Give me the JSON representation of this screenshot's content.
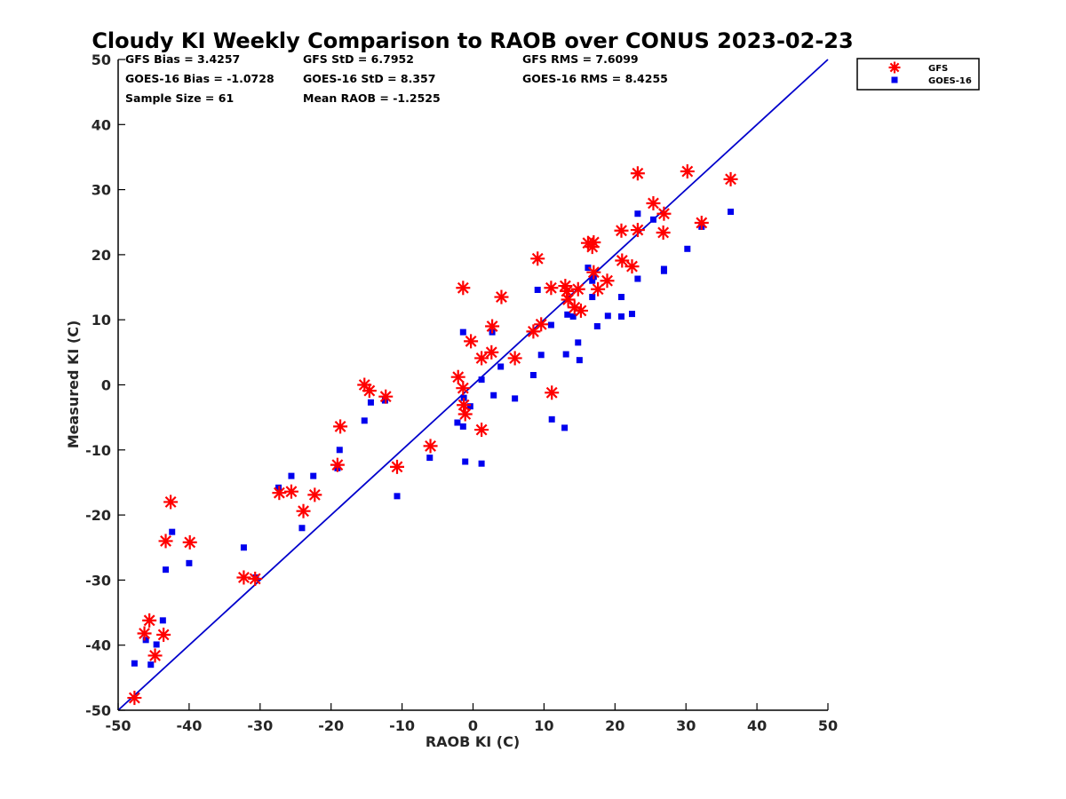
{
  "chart_data": {
    "type": "scatter",
    "title": "Cloudy KI Weekly Comparison to RAOB over CONUS 2023-02-23",
    "xlabel": "RAOB KI (C)",
    "ylabel": "Measured KI (C)",
    "xlim": [
      -50,
      50
    ],
    "ylim": [
      -50,
      50
    ],
    "xticks": [
      -50,
      -40,
      -30,
      -20,
      -10,
      0,
      10,
      20,
      30,
      40,
      50
    ],
    "yticks": [
      -50,
      -40,
      -30,
      -20,
      -10,
      0,
      10,
      20,
      30,
      40,
      50
    ],
    "grid": false,
    "legend_position": "outside-top-right",
    "reference_line": {
      "from": [
        -50,
        -50
      ],
      "to": [
        50,
        50
      ],
      "color": "#0000cc"
    },
    "stats": [
      "GFS Bias = 3.4257",
      "GFS StD = 6.7952",
      "GFS RMS = 7.6099",
      "GOES-16 Bias = -1.0728",
      "GOES-16 StD = 8.357",
      "GOES-16 RMS = 8.4255",
      "Sample Size = 61",
      "Mean RAOB = -1.2525"
    ],
    "series": [
      {
        "name": "GFS",
        "marker": "asterisk",
        "color": "#ff0000",
        "points": [
          [
            -47.7,
            -48.1
          ],
          [
            -46.3,
            -38.2
          ],
          [
            -45.6,
            -36.2
          ],
          [
            -44.8,
            -41.6
          ],
          [
            -43.6,
            -38.4
          ],
          [
            -43.3,
            -24.0
          ],
          [
            -42.6,
            -18.0
          ],
          [
            -39.9,
            -24.2
          ],
          [
            -32.3,
            -29.6
          ],
          [
            -30.7,
            -29.8
          ],
          [
            -27.3,
            -16.6
          ],
          [
            -25.6,
            -16.4
          ],
          [
            -23.9,
            -19.4
          ],
          [
            -22.3,
            -16.9
          ],
          [
            -19.1,
            -12.3
          ],
          [
            -18.7,
            -6.4
          ],
          [
            -15.3,
            0.0
          ],
          [
            -14.6,
            -0.9
          ],
          [
            -12.3,
            -1.8
          ],
          [
            -10.7,
            -12.6
          ],
          [
            -6.0,
            -9.4
          ],
          [
            -2.1,
            1.2
          ],
          [
            -1.4,
            -0.5
          ],
          [
            -1.3,
            -3.1
          ],
          [
            -1.1,
            -4.5
          ],
          [
            -1.4,
            14.9
          ],
          [
            -0.3,
            6.7
          ],
          [
            1.2,
            4.1
          ],
          [
            1.2,
            -6.9
          ],
          [
            2.6,
            5.0
          ],
          [
            2.7,
            9.0
          ],
          [
            4.0,
            13.5
          ],
          [
            5.9,
            4.1
          ],
          [
            8.5,
            8.2
          ],
          [
            9.1,
            19.4
          ],
          [
            9.6,
            9.3
          ],
          [
            11.0,
            14.9
          ],
          [
            11.1,
            -1.2
          ],
          [
            13.0,
            15.2
          ],
          [
            13.2,
            14.4
          ],
          [
            13.4,
            13.1
          ],
          [
            14.3,
            11.9
          ],
          [
            14.8,
            14.7
          ],
          [
            15.2,
            11.4
          ],
          [
            16.2,
            21.8
          ],
          [
            16.8,
            21.2
          ],
          [
            17.0,
            21.9
          ],
          [
            17.0,
            17.3
          ],
          [
            17.6,
            14.7
          ],
          [
            18.9,
            16.0
          ],
          [
            20.9,
            23.7
          ],
          [
            21.0,
            19.1
          ],
          [
            22.4,
            18.2
          ],
          [
            23.2,
            32.5
          ],
          [
            23.2,
            23.8
          ],
          [
            25.4,
            27.9
          ],
          [
            26.8,
            23.4
          ],
          [
            26.9,
            26.3
          ],
          [
            30.2,
            32.8
          ],
          [
            32.2,
            24.9
          ],
          [
            36.3,
            31.6
          ]
        ]
      },
      {
        "name": "GOES-16",
        "marker": "square",
        "color": "#0000ee",
        "points": [
          [
            -47.7,
            -42.8
          ],
          [
            -46.1,
            -39.2
          ],
          [
            -45.4,
            -43.0
          ],
          [
            -44.6,
            -39.9
          ],
          [
            -43.7,
            -36.2
          ],
          [
            -43.3,
            -28.4
          ],
          [
            -42.4,
            -22.6
          ],
          [
            -40.0,
            -27.4
          ],
          [
            -32.3,
            -25.0
          ],
          [
            -30.6,
            -29.6
          ],
          [
            -27.4,
            -15.8
          ],
          [
            -25.6,
            -14.0
          ],
          [
            -24.1,
            -22.0
          ],
          [
            -22.5,
            -14.0
          ],
          [
            -19.1,
            -12.8
          ],
          [
            -18.8,
            -10.0
          ],
          [
            -15.3,
            -5.5
          ],
          [
            -14.4,
            -2.7
          ],
          [
            -12.4,
            -2.4
          ],
          [
            -10.7,
            -17.1
          ],
          [
            -6.1,
            -11.2
          ],
          [
            -2.2,
            -5.8
          ],
          [
            -1.4,
            -6.4
          ],
          [
            -1.3,
            -2.0
          ],
          [
            -1.1,
            -11.8
          ],
          [
            -1.4,
            8.1
          ],
          [
            -0.4,
            -3.3
          ],
          [
            1.2,
            0.8
          ],
          [
            1.2,
            -12.1
          ],
          [
            2.7,
            8.1
          ],
          [
            2.9,
            -1.6
          ],
          [
            3.9,
            2.8
          ],
          [
            5.9,
            -2.1
          ],
          [
            8.5,
            1.5
          ],
          [
            9.1,
            14.6
          ],
          [
            9.6,
            4.6
          ],
          [
            11.0,
            9.2
          ],
          [
            11.1,
            -5.3
          ],
          [
            12.9,
            -6.6
          ],
          [
            13.1,
            4.7
          ],
          [
            13.3,
            10.8
          ],
          [
            14.1,
            10.5
          ],
          [
            14.8,
            6.5
          ],
          [
            15.0,
            3.8
          ],
          [
            16.2,
            18.0
          ],
          [
            16.8,
            16.0
          ],
          [
            16.8,
            13.5
          ],
          [
            17.0,
            16.6
          ],
          [
            17.5,
            9.0
          ],
          [
            19.0,
            10.6
          ],
          [
            20.9,
            13.5
          ],
          [
            20.9,
            10.5
          ],
          [
            22.4,
            10.9
          ],
          [
            23.2,
            26.3
          ],
          [
            23.2,
            16.3
          ],
          [
            25.4,
            25.4
          ],
          [
            26.9,
            17.5
          ],
          [
            26.9,
            17.8
          ],
          [
            30.2,
            20.9
          ],
          [
            32.2,
            24.3
          ],
          [
            36.3,
            26.6
          ]
        ]
      }
    ]
  }
}
